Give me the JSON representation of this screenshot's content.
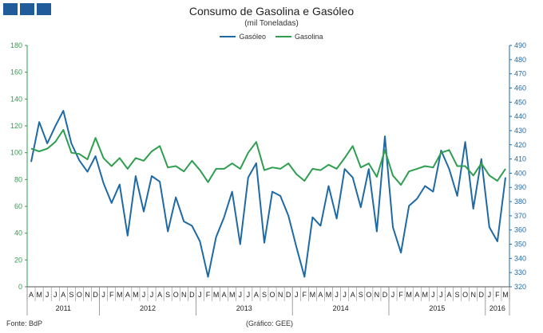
{
  "title": "Consumo de Gasolina e Gasóleo",
  "subtitle": "(mil Toneladas)",
  "footer": {
    "source": "Fonte: BdP",
    "credit": "(Gráfico: GEE)"
  },
  "colors": {
    "gasoleo": "#1f6aa5",
    "gasolina": "#2e9e4f",
    "axis_left": "#2e9e4f",
    "axis_right": "#1f6aa5"
  },
  "chart_data": {
    "type": "line",
    "title": "Consumo de Gasolina e Gasóleo",
    "subtitle": "(mil Toneladas)",
    "legend_position": "top-center",
    "grid": false,
    "x_months": [
      "A",
      "M",
      "J",
      "J",
      "A",
      "S",
      "O",
      "N",
      "D",
      "J",
      "F",
      "M",
      "A",
      "M",
      "J",
      "J",
      "A",
      "S",
      "O",
      "N",
      "D",
      "J",
      "F",
      "M",
      "A",
      "M",
      "J",
      "J",
      "A",
      "S",
      "O",
      "N",
      "D",
      "J",
      "F",
      "M",
      "A",
      "M",
      "J",
      "J",
      "A",
      "S",
      "O",
      "N",
      "D",
      "J",
      "F",
      "M",
      "A",
      "M",
      "J",
      "J",
      "A",
      "S",
      "O",
      "N",
      "D",
      "J",
      "F",
      "M"
    ],
    "x_years": [
      {
        "label": "2011",
        "start": 0,
        "end": 8
      },
      {
        "label": "2012",
        "start": 9,
        "end": 20
      },
      {
        "label": "2013",
        "start": 21,
        "end": 32
      },
      {
        "label": "2014",
        "start": 33,
        "end": 44
      },
      {
        "label": "2015",
        "start": 45,
        "end": 56
      },
      {
        "label": "2016",
        "start": 57,
        "end": 59
      }
    ],
    "y_left": {
      "min": 0,
      "max": 180,
      "step": 20
    },
    "y_right": {
      "min": 320,
      "max": 490,
      "step": 10
    },
    "series": [
      {
        "name": "Gasóleo",
        "axis": "right",
        "color": "#1f6aa5",
        "values": [
          408,
          436,
          421,
          433,
          444,
          421,
          409,
          401,
          412,
          393,
          379,
          392,
          356,
          398,
          373,
          398,
          394,
          359,
          383,
          366,
          363,
          352,
          327,
          355,
          369,
          387,
          350,
          397,
          407,
          351,
          387,
          384,
          370,
          348,
          327,
          369,
          363,
          391,
          368,
          403,
          397,
          376,
          403,
          359,
          426,
          362,
          344,
          377,
          382,
          391,
          387,
          416,
          403,
          384,
          422,
          375,
          410,
          362,
          352,
          397
        ]
      },
      {
        "name": "Gasolina",
        "axis": "left",
        "color": "#2e9e4f",
        "values": [
          103,
          101,
          103,
          108,
          117,
          100,
          99,
          95,
          111,
          96,
          90,
          96,
          88,
          96,
          94,
          101,
          105,
          89,
          90,
          86,
          94,
          87,
          78,
          88,
          88,
          92,
          88,
          100,
          108,
          87,
          89,
          88,
          92,
          84,
          79,
          88,
          87,
          91,
          88,
          96,
          105,
          89,
          92,
          82,
          102,
          83,
          76,
          86,
          88,
          90,
          89,
          100,
          102,
          90,
          90,
          83,
          92,
          83,
          79,
          88
        ]
      }
    ]
  }
}
